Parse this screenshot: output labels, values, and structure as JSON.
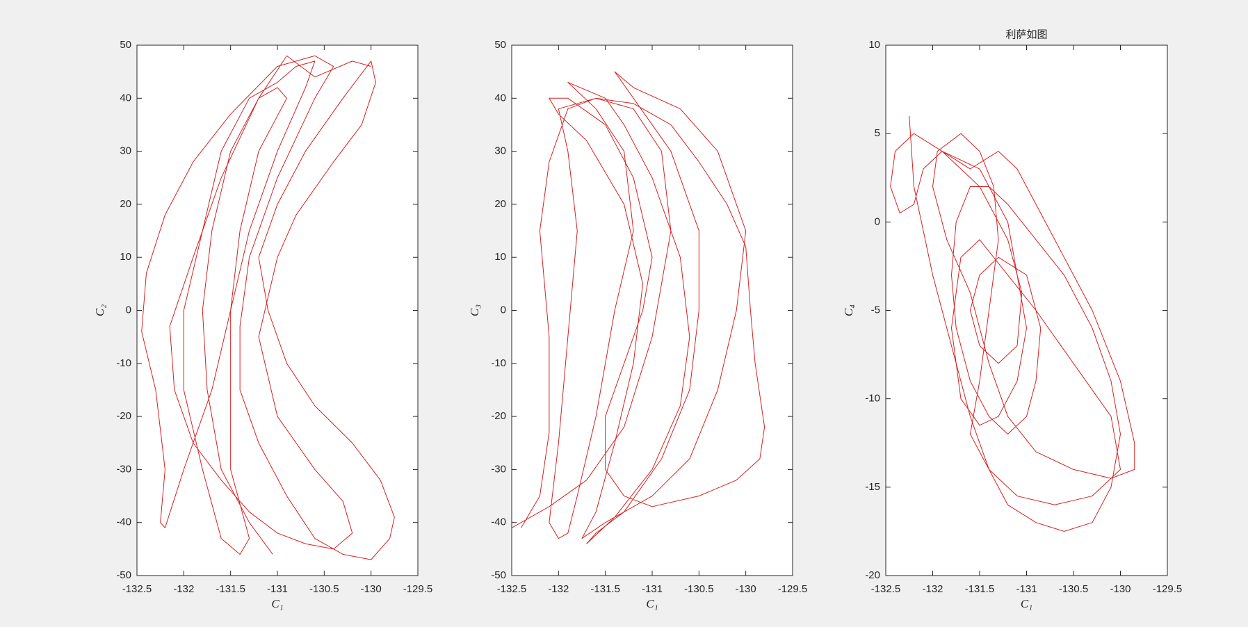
{
  "chart_data": [
    {
      "type": "line",
      "xlabel": "C₁",
      "ylabel": "C₂",
      "color": "#d62020",
      "xlim": [
        -132.5,
        -129.5
      ],
      "xticks": [
        -132.5,
        -132,
        -131.5,
        -131,
        -130.5,
        -130,
        -129.5
      ],
      "ylim": [
        -50,
        50
      ],
      "yticks": [
        -50,
        -40,
        -30,
        -20,
        -10,
        0,
        10,
        20,
        30,
        40,
        50
      ],
      "x": [
        -131.05,
        -131.3,
        -131.6,
        -131.75,
        -131.8,
        -131.7,
        -131.5,
        -131.2,
        -131.0,
        -130.9,
        -131.2,
        -131.4,
        -131.5,
        -131.5,
        -131.5,
        -131.3,
        -131.4,
        -131.6,
        -131.8,
        -132.0,
        -132.0,
        -131.8,
        -131.6,
        -131.3,
        -131.0,
        -130.8,
        -130.6,
        -130.7,
        -131.0,
        -131.3,
        -131.5,
        -131.7,
        -132.0,
        -132.2,
        -132.25,
        -132.2,
        -132.3,
        -132.45,
        -132.4,
        -132.2,
        -131.9,
        -131.5,
        -131.0,
        -130.6,
        -130.4,
        -130.6,
        -131.0,
        -131.3,
        -131.4,
        -131.4,
        -131.2,
        -130.9,
        -130.6,
        -130.3,
        -130.0,
        -129.8,
        -129.75,
        -129.9,
        -130.2,
        -130.6,
        -130.9,
        -131.1,
        -131.2,
        -131.0,
        -130.7,
        -130.3,
        -130.0,
        -129.95,
        -130.1,
        -130.4,
        -130.8,
        -131.0,
        -131.2,
        -131.0,
        -130.6,
        -130.3,
        -130.2,
        -130.4,
        -130.7,
        -131.0,
        -131.3,
        -131.6,
        -131.9,
        -132.1,
        -132.15,
        -131.9,
        -131.6,
        -131.2,
        -130.9,
        -130.6,
        -130.2,
        -130.0
      ],
      "values": [
        -46,
        -40,
        -30,
        -15,
        0,
        15,
        30,
        40,
        42,
        40,
        30,
        15,
        0,
        -15,
        -30,
        -43,
        -46,
        -43,
        -30,
        -15,
        0,
        15,
        30,
        40,
        43,
        46,
        47,
        42,
        30,
        15,
        0,
        -15,
        -30,
        -41,
        -40,
        -30,
        -15,
        -4,
        7,
        18,
        28,
        37,
        46,
        48,
        46,
        40,
        25,
        10,
        -3,
        -15,
        -25,
        -35,
        -43,
        -46,
        -47,
        -43,
        -39,
        -32,
        -25,
        -18,
        -10,
        0,
        10,
        20,
        30,
        40,
        47,
        43,
        35,
        28,
        18,
        10,
        -5,
        -20,
        -30,
        -36,
        -42,
        -45,
        -44,
        -42,
        -38,
        -32,
        -25,
        -15,
        -3,
        10,
        25,
        40,
        48,
        44,
        47,
        46
      ]
    },
    {
      "type": "line",
      "xlabel": "C₁",
      "ylabel": "C₃",
      "color": "#d62020",
      "xlim": [
        -132.5,
        -129.5
      ],
      "xticks": [
        -132.5,
        -132,
        -131.5,
        -131,
        -130.5,
        -130,
        -129.5
      ],
      "ylim": [
        -50,
        50
      ],
      "yticks": [
        -50,
        -40,
        -30,
        -20,
        -10,
        0,
        10,
        20,
        30,
        40,
        50
      ],
      "x": [
        -132.4,
        -132.2,
        -132.1,
        -132.1,
        -132.2,
        -132.1,
        -131.9,
        -131.6,
        -131.2,
        -130.8,
        -130.5,
        -130.2,
        -130.0,
        -129.95,
        -129.9,
        -129.8,
        -129.85,
        -130.1,
        -130.5,
        -131.0,
        -131.3,
        -131.5,
        -131.5,
        -131.3,
        -131.1,
        -131.0,
        -131.2,
        -131.5,
        -131.9,
        -132.1,
        -132.0,
        -131.7,
        -131.3,
        -131.1,
        -131.2,
        -131.4,
        -131.6,
        -131.75,
        -131.5,
        -131.0,
        -130.6,
        -130.3,
        -130.1,
        -130.0,
        -130.3,
        -130.7,
        -131.2,
        -131.4,
        -131.2,
        -130.8,
        -130.5,
        -130.5,
        -130.6,
        -130.9,
        -131.3,
        -131.6,
        -131.7,
        -131.4,
        -131.0,
        -130.7,
        -130.6,
        -130.7,
        -131.0,
        -131.3,
        -131.5,
        -131.9,
        -131.6,
        -131.3,
        -131.2,
        -131.4,
        -131.6,
        -131.8,
        -131.9,
        -132.0,
        -132.1,
        -132.0,
        -131.9,
        -131.8,
        -131.9,
        -132.0,
        -131.6,
        -131.2,
        -130.9,
        -130.8,
        -131.0,
        -131.3,
        -131.7,
        -132.1,
        -132.5
      ],
      "values": [
        -41,
        -35,
        -23,
        -5,
        15,
        28,
        38,
        40,
        39,
        35,
        28,
        20,
        12,
        0,
        -10,
        -22,
        -28,
        -32,
        -35,
        -37,
        -35,
        -30,
        -20,
        -10,
        0,
        10,
        25,
        35,
        40,
        40,
        37,
        32,
        20,
        5,
        -10,
        -25,
        -38,
        -43,
        -40,
        -35,
        -28,
        -15,
        0,
        15,
        30,
        38,
        42,
        45,
        40,
        30,
        15,
        0,
        -15,
        -28,
        -38,
        -42,
        -44,
        -39,
        -30,
        -18,
        -5,
        10,
        25,
        35,
        40,
        43,
        38,
        30,
        15,
        0,
        -20,
        -35,
        -42,
        -43,
        -40,
        -25,
        -5,
        15,
        30,
        38,
        40,
        38,
        30,
        15,
        -5,
        -22,
        -32,
        -37,
        -41
      ]
    },
    {
      "type": "line",
      "title": "利萨如图",
      "xlabel": "C₁",
      "ylabel": "C₄",
      "color": "#d62020",
      "xlim": [
        -132.5,
        -129.5
      ],
      "xticks": [
        -132.5,
        -132,
        -131.5,
        -131,
        -130.5,
        -130,
        -129.5
      ],
      "ylim": [
        -20,
        10
      ],
      "yticks": [
        -20,
        -15,
        -10,
        -5,
        0,
        5,
        10
      ],
      "x": [
        -132.25,
        -132.2,
        -132.0,
        -131.8,
        -131.6,
        -131.4,
        -131.2,
        -130.9,
        -130.6,
        -130.3,
        -130.1,
        -130.0,
        -130.1,
        -130.3,
        -130.6,
        -130.9,
        -131.2,
        -131.4,
        -131.6,
        -131.75,
        -131.8,
        -131.75,
        -131.6,
        -131.4,
        -131.2,
        -131.0,
        -130.9,
        -130.85,
        -131.0,
        -131.3,
        -131.5,
        -131.6,
        -131.5,
        -131.3,
        -131.1,
        -131.05,
        -131.2,
        -131.5,
        -131.7,
        -131.9,
        -132.2,
        -132.4,
        -132.45,
        -132.35,
        -132.2,
        -132.1,
        -131.9,
        -131.6,
        -131.3,
        -131.1,
        -130.9,
        -130.6,
        -130.3,
        -130.0,
        -129.85,
        -129.85,
        -130.1,
        -130.5,
        -130.9,
        -131.2,
        -131.4,
        -131.6,
        -131.85,
        -132.0,
        -131.95,
        -131.7,
        -131.5,
        -131.35,
        -131.3,
        -131.4,
        -131.5,
        -131.6,
        -131.4,
        -131.1,
        -130.7,
        -130.3,
        -130.0,
        -130.1,
        -130.5,
        -130.9,
        -131.2,
        -131.5,
        -131.7,
        -131.8,
        -131.7,
        -131.5,
        -131.3,
        -131.1,
        -131.0,
        -131.1,
        -131.2,
        -131.5,
        -131.9,
        -132.2
      ],
      "values": [
        6,
        2,
        -3,
        -7,
        -11,
        -14,
        -16,
        -17,
        -17.5,
        -17,
        -15,
        -12,
        -9,
        -6,
        -3,
        -1,
        1,
        2,
        2,
        0,
        -3,
        -6,
        -9,
        -11,
        -12,
        -11,
        -9,
        -6,
        -3,
        -2,
        -3,
        -5,
        -7,
        -8,
        -7,
        -4,
        -1,
        2,
        3,
        4,
        5,
        4,
        2,
        0.5,
        1,
        3,
        4,
        3,
        4,
        3,
        1,
        -2,
        -5,
        -9,
        -12.5,
        -14,
        -14.5,
        -14,
        -13,
        -11,
        -8,
        -4,
        -1,
        2,
        4,
        5,
        4,
        2,
        -1,
        -5,
        -9,
        -12,
        -14,
        -15.5,
        -16,
        -15.5,
        -14,
        -11,
        -8,
        -5,
        -3,
        -1,
        -2,
        -6,
        -10,
        -11.5,
        -11,
        -9,
        -6,
        -3,
        0,
        3,
        4,
        5
      ]
    }
  ]
}
